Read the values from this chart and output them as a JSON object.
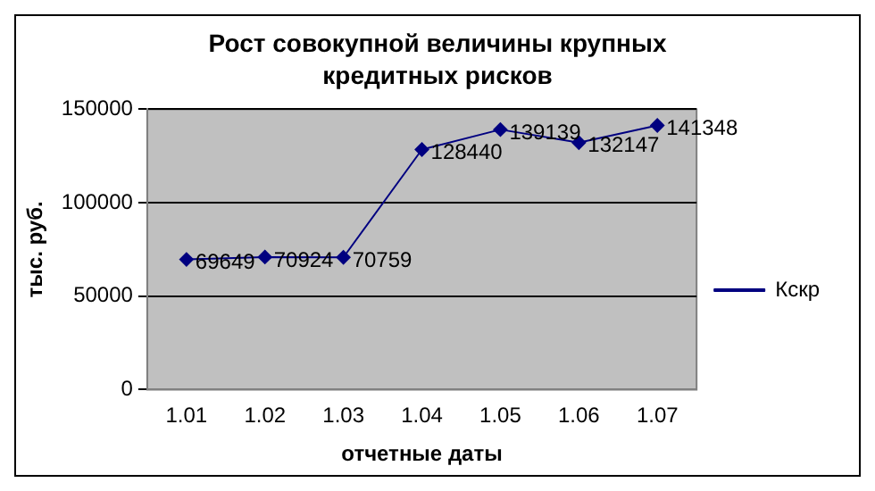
{
  "chart_data": {
    "type": "line",
    "title": "Рост совокупной величины крупных кредитных рисков",
    "xlabel": "отчетные даты",
    "ylabel": "тыс. руб.",
    "categories": [
      "1.01",
      "1.02",
      "1.03",
      "1.04",
      "1.05",
      "1.06",
      "1.07"
    ],
    "series": [
      {
        "name": "Кскр",
        "color": "#000080",
        "values": [
          69649,
          70924,
          70759,
          128440,
          139139,
          132147,
          141348
        ]
      }
    ],
    "ylim": [
      0,
      150000
    ],
    "yticks": [
      0,
      50000,
      100000,
      150000
    ],
    "grid": "y",
    "legend": "right",
    "marker": "diamond",
    "line_style": "solid",
    "data_labels": true
  }
}
